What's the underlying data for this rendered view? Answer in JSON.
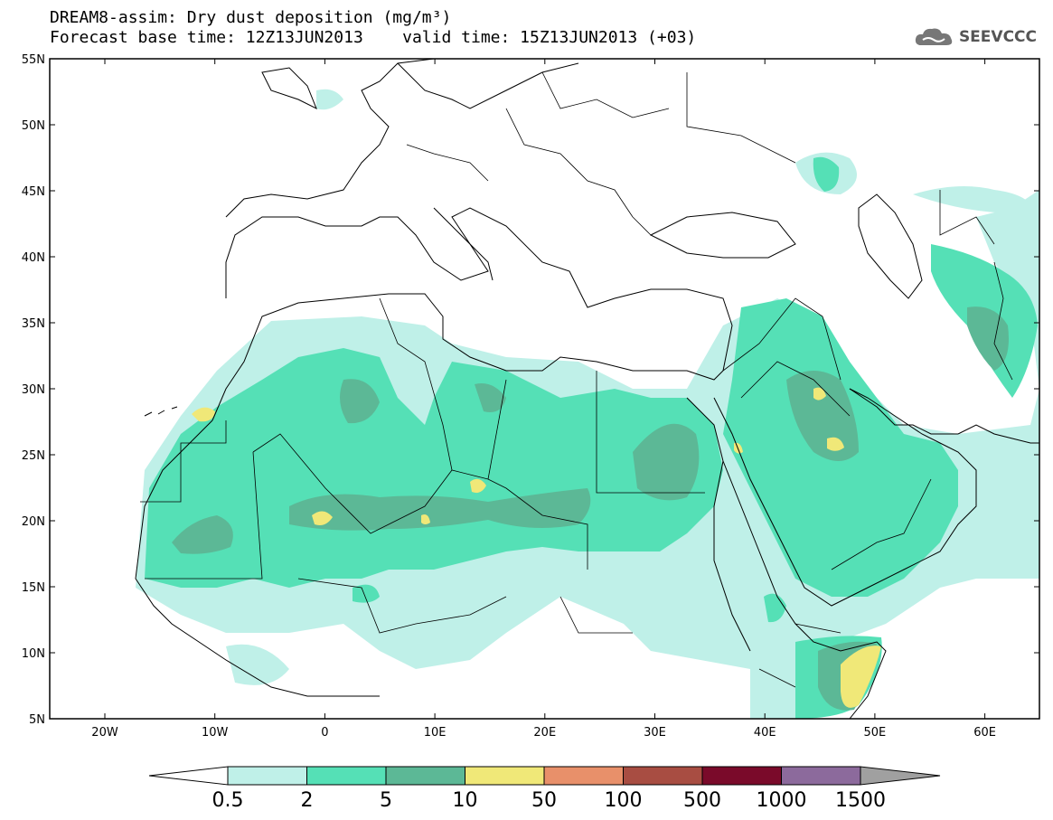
{
  "header": {
    "title_line1": "DREAM8-assim: Dry dust deposition (mg/m³)",
    "title_line2": "Forecast base time: 12Z13JUN2013    valid time: 15Z13JUN2013 (+03)"
  },
  "logo": {
    "text": "SEEVCCC",
    "icon": "cloud-icon"
  },
  "map": {
    "lat_ticks": [
      "55N",
      "50N",
      "45N",
      "40N",
      "35N",
      "30N",
      "25N",
      "20N",
      "15N",
      "10N",
      "5N"
    ],
    "lon_ticks": [
      "20W",
      "10W",
      "0",
      "10E",
      "20E",
      "30E",
      "40E",
      "50E",
      "60E"
    ]
  },
  "colorbar": {
    "labels": [
      "0.5",
      "2",
      "5",
      "10",
      "50",
      "100",
      "500",
      "1000",
      "1500"
    ],
    "colors": [
      "#bff0e8",
      "#55e0b6",
      "#5cb896",
      "#f0e878",
      "#e8906a",
      "#a84d42",
      "#7a0a2a",
      "#8c6a9c"
    ],
    "under_color": "#ffffff",
    "over_color": "#a0a0a0"
  },
  "palette": {
    "light": "#bff0e8",
    "mid": "#55e0b6",
    "dark": "#5cb896",
    "yellow": "#f0e878"
  }
}
